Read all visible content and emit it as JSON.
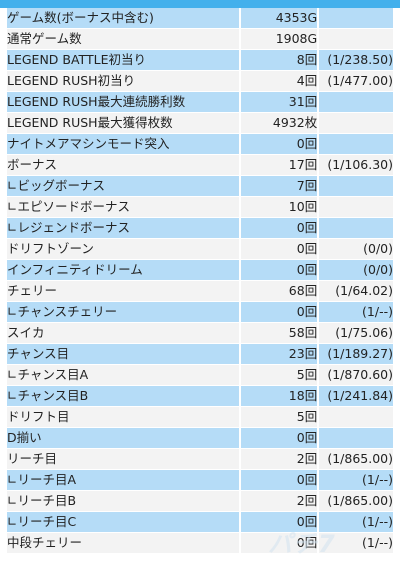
{
  "header": {
    "title": ""
  },
  "rows": [
    {
      "label": "ゲーム数(ボーナス中含む)",
      "count": "4353G",
      "prob": "",
      "style": "blue"
    },
    {
      "label": "通常ゲーム数",
      "count": "1908G",
      "prob": "",
      "style": "white"
    },
    {
      "label": "LEGEND BATTLE初当り",
      "count": "8回",
      "prob": "(1/238.50)",
      "style": "blue"
    },
    {
      "label": "LEGEND RUSH初当り",
      "count": "4回",
      "prob": "(1/477.00)",
      "style": "white"
    },
    {
      "label": "LEGEND RUSH最大連続勝利数",
      "count": "31回",
      "prob": "",
      "style": "blue"
    },
    {
      "label": "LEGEND RUSH最大獲得枚数",
      "count": "4932枚",
      "prob": "",
      "style": "white"
    },
    {
      "label": "ナイトメアマシンモード突入",
      "count": "0回",
      "prob": "",
      "style": "blue"
    },
    {
      "label": "ボーナス",
      "count": "17回",
      "prob": "(1/106.30)",
      "style": "white"
    },
    {
      "label": "∟ビッグボーナス",
      "count": "7回",
      "prob": "",
      "style": "blue"
    },
    {
      "label": "∟エピソードボーナス",
      "count": "10回",
      "prob": "",
      "style": "white"
    },
    {
      "label": "∟レジェンドボーナス",
      "count": "0回",
      "prob": "",
      "style": "blue"
    },
    {
      "label": "ドリフトゾーン",
      "count": "0回",
      "prob": "(0/0)",
      "style": "white"
    },
    {
      "label": "インフィニティドリーム",
      "count": "0回",
      "prob": "(0/0)",
      "style": "blue"
    },
    {
      "label": "チェリー",
      "count": "68回",
      "prob": "(1/64.02)",
      "style": "white"
    },
    {
      "label": "∟チャンスチェリー",
      "count": "0回",
      "prob": "(1/--)",
      "style": "blue"
    },
    {
      "label": "スイカ",
      "count": "58回",
      "prob": "(1/75.06)",
      "style": "white"
    },
    {
      "label": "チャンス目",
      "count": "23回",
      "prob": "(1/189.27)",
      "style": "blue"
    },
    {
      "label": "∟チャンス目A",
      "count": "5回",
      "prob": "(1/870.60)",
      "style": "white"
    },
    {
      "label": "∟チャンス目B",
      "count": "18回",
      "prob": "(1/241.84)",
      "style": "blue"
    },
    {
      "label": "ドリフト目",
      "count": "5回",
      "prob": "",
      "style": "white"
    },
    {
      "label": "D揃い",
      "count": "0回",
      "prob": "",
      "style": "blue"
    },
    {
      "label": "リーチ目",
      "count": "2回",
      "prob": "(1/865.00)",
      "style": "white"
    },
    {
      "label": "∟リーチ目A",
      "count": "0回",
      "prob": "(1/--)",
      "style": "blue"
    },
    {
      "label": "∟リーチ目B",
      "count": "2回",
      "prob": "(1/865.00)",
      "style": "white"
    },
    {
      "label": "∟リーチ目C",
      "count": "0回",
      "prob": "(1/--)",
      "style": "blue"
    },
    {
      "label": "中段チェリー",
      "count": "0回",
      "prob": "(1/--)",
      "style": "white"
    }
  ],
  "colors": {
    "header": "#43b0ec",
    "row_blue": "#b5dcf7",
    "row_white": "#f3f3f3"
  }
}
